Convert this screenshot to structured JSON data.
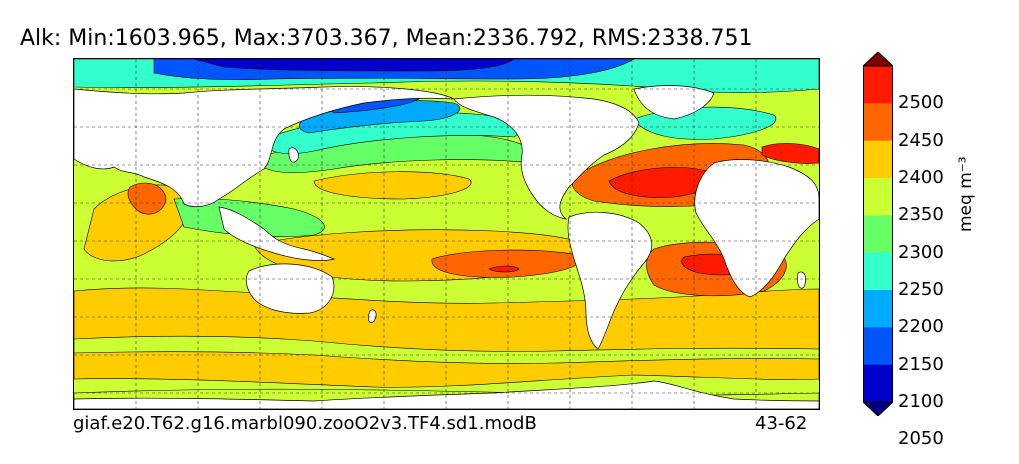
{
  "title": "Alk: Min:1603.965, Max:3703.367, Mean:2336.792, RMS:2338.751",
  "footer": {
    "case_name": "giaf.e20.T62.g16.marbl090.zooO2v3.TF4.sd1.modB",
    "years": "43-62"
  },
  "colorbar": {
    "unit_label": "meq m⁻³",
    "ticks": [
      "2500",
      "2450",
      "2400",
      "2350",
      "2300",
      "2250",
      "2200",
      "2150",
      "2100",
      "2050"
    ],
    "levels": [
      {
        "range": "< 2050",
        "color": "#000080"
      },
      {
        "range": "2050-2100",
        "color": "#0000cd"
      },
      {
        "range": "2100-2150",
        "color": "#0055ff"
      },
      {
        "range": "2150-2200",
        "color": "#00aaff"
      },
      {
        "range": "2200-2250",
        "color": "#33ffcc"
      },
      {
        "range": "2250-2300",
        "color": "#66ff66"
      },
      {
        "range": "2300-2350",
        "color": "#ccff33"
      },
      {
        "range": "2350-2400",
        "color": "#ffcc00"
      },
      {
        "range": "2400-2450",
        "color": "#ff6600"
      },
      {
        "range": "2450-2500",
        "color": "#ff1a00"
      },
      {
        "range": "> 2500",
        "color": "#800000"
      }
    ]
  },
  "colors": {
    "land": "#ffffff",
    "gridline": "#333333"
  }
}
